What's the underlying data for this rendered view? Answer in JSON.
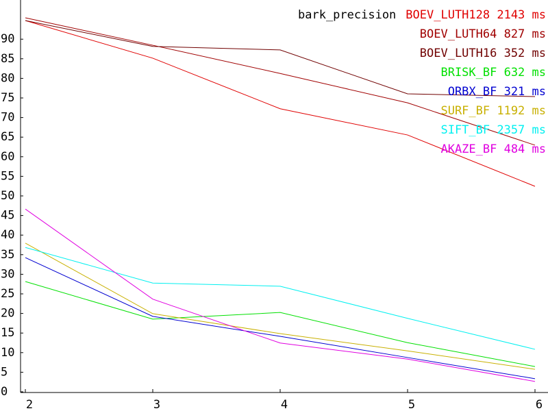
{
  "chart_data": {
    "type": "line",
    "title": "bark_precision",
    "x": [
      2,
      3,
      4,
      5,
      6
    ],
    "xlim": [
      2,
      6
    ],
    "xticks": [
      2,
      3,
      4,
      5,
      6
    ],
    "ylim": [
      0,
      100
    ],
    "yticks": [
      0,
      5,
      10,
      15,
      20,
      25,
      30,
      35,
      40,
      45,
      50,
      55,
      60,
      65,
      70,
      75,
      80,
      85,
      90
    ],
    "legend": "upper right",
    "series": [
      {
        "name": "BOEV_LUTH128 2143 ms",
        "color": "#e00000",
        "values": [
          95.8,
          86.2,
          73.3,
          66.6,
          53.5
        ]
      },
      {
        "name": "BOEV_LUTH64 827 ms",
        "color": "#a00000",
        "values": [
          96.5,
          89.5,
          82.3,
          74.8,
          64
        ]
      },
      {
        "name": "BOEV_LUTH16 352 ms",
        "color": "#700000",
        "values": [
          95.8,
          89.2,
          88.3,
          77.1,
          76.4
        ]
      },
      {
        "name": "BRISK_BF 632 ms",
        "color": "#00e000",
        "values": [
          29.2,
          19.6,
          21.3,
          13.6,
          7.5
        ]
      },
      {
        "name": "ORBX_BF 321 ms",
        "color": "#0000d0",
        "values": [
          35.3,
          20.3,
          15.2,
          9.8,
          4.4
        ]
      },
      {
        "name": "SURF_BF 1192 ms",
        "color": "#c8b000",
        "values": [
          39,
          21,
          15.9,
          11.5,
          6.8
        ]
      },
      {
        "name": "SIFT_BF 2357 ms",
        "color": "#00f0f0",
        "values": [
          37.9,
          28.8,
          28,
          19.8,
          11.9
        ]
      },
      {
        "name": "AKAZE_BF 484 ms",
        "color": "#e000e0",
        "values": [
          47.7,
          24.7,
          13.5,
          9.4,
          3.7
        ]
      }
    ]
  }
}
